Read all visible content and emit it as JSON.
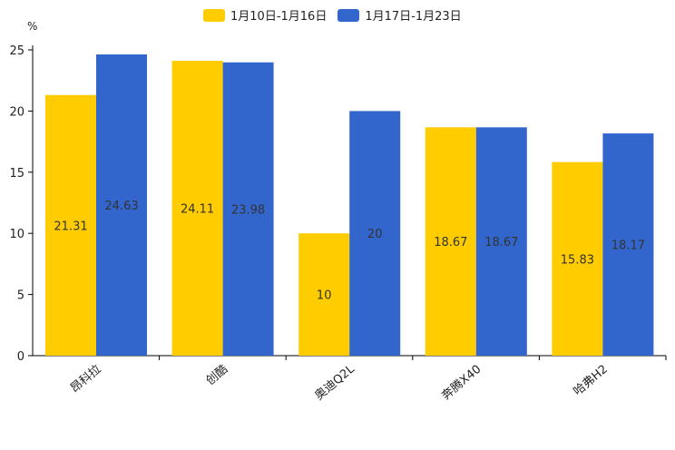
{
  "chart_data": {
    "type": "bar",
    "title": "",
    "unit": "%",
    "xlabel": "",
    "ylabel": "%",
    "categories": [
      "昂科拉",
      "创酷",
      "奥迪Q2L",
      "奔腾X40",
      "哈弗H2"
    ],
    "series": [
      {
        "name": "1月10日-1月16日",
        "color": "#ffcc00",
        "values": [
          21.31,
          24.11,
          10,
          18.67,
          15.83
        ]
      },
      {
        "name": "1月17日-1月23日",
        "color": "#3366cc",
        "values": [
          24.63,
          23.98,
          20,
          18.67,
          18.17
        ]
      }
    ],
    "ylim": [
      0,
      25
    ],
    "yticks": [
      0,
      5,
      10,
      15,
      20,
      25
    ],
    "grid": false,
    "legend_position": "top-center"
  }
}
